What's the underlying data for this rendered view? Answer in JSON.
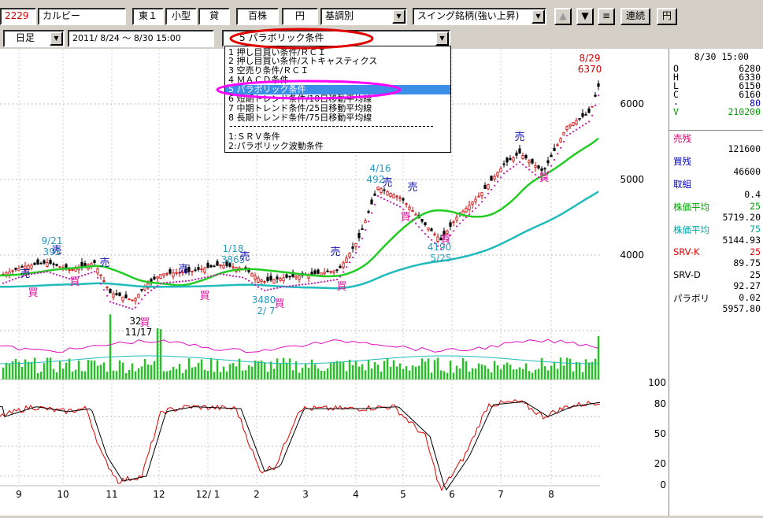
{
  "toolbar": {
    "code": "2229",
    "name": "カルビー",
    "market": "東１",
    "size": "小型",
    "loan": "貸",
    "unit": "百株",
    "currency_btn": "円",
    "condition_select": "基調別",
    "screen_select": "スイング銘柄(強い上昇)",
    "up_btn": "▲",
    "down_btn": "▼",
    "menu_btn": "≡",
    "continuous_btn": "連続",
    "yen_btn": "円"
  },
  "toolbar2": {
    "period": "日足",
    "date_range": "2011/ 8/24 〜  8/30 15:00",
    "indicator_select": "5 パラボリック条件"
  },
  "dropdown": {
    "items": [
      "1 押し目買い条件/ＲＣＩ",
      "2 押し目買い条件/ストキャスティクス",
      "3 空売り条件/ＲＣＩ",
      "4 ＭＡＣＤ条件",
      "5 パラボリック条件",
      "6 短期トレンド条件/10日移動平均線",
      "7 中期トレンド条件/25日移動平均線",
      "8 長期トレンド条件/75日移動平均線",
      "1:ＳＲＶ条件",
      "2:パラボリック波動条件"
    ],
    "selected_index": 4
  },
  "panel": {
    "date": "8/30 15:00",
    "ohlc": [
      {
        "k": "O",
        "v": "6280"
      },
      {
        "k": "H",
        "v": "6330"
      },
      {
        "k": "L",
        "v": "6150"
      },
      {
        "k": "C",
        "v": "6160"
      },
      {
        "k": "-",
        "v": "80"
      },
      {
        "k": "V",
        "v": "210200"
      }
    ],
    "stats": [
      {
        "label": "売残",
        "value": "121600",
        "color": "#d0006e"
      },
      {
        "label": "買残",
        "value": "46600",
        "color": "#0000c0"
      },
      {
        "label": "取組",
        "value": "0.4",
        "color": "#0000c0"
      },
      {
        "label": "株価平均",
        "sub": "25",
        "value": "5719.20",
        "color": "#00a000"
      },
      {
        "label": "株価平均",
        "sub": "75",
        "value": "5144.93",
        "color": "#00a0a0"
      },
      {
        "label": "SRV-K",
        "sub": "25",
        "value": "89.75",
        "color": "#e00000"
      },
      {
        "label": "SRV-D",
        "sub": "25",
        "value": "92.27",
        "color": "#000000"
      },
      {
        "label": "パラボリ",
        "sub": "0.02",
        "value": "5957.80",
        "color": "#000000"
      }
    ]
  },
  "axes": {
    "price_ticks": [
      "6000",
      "5000",
      "4000"
    ],
    "osc_ticks": [
      "100",
      "80",
      "50",
      "20",
      "0"
    ],
    "x_ticks": [
      "9",
      "10",
      "11",
      "12",
      "12/ 1",
      "2",
      "3",
      "4",
      "5",
      "6",
      "7",
      "8"
    ]
  },
  "annotations": {
    "top_date": "8/29",
    "top_price": "6370",
    "a1_date": "9/21",
    "a1_price": "395",
    "a2_date": "1/18",
    "a2_price": "3865",
    "a3_price": "3480",
    "a3_date": "2/ 7",
    "a4_price": "32",
    "a4_date": "11/17",
    "a5_date": "4/16",
    "a5_price": "492",
    "a6_price": "4190",
    "a6_date": "5/25",
    "sell": "売",
    "buy": "買"
  },
  "colors": {
    "highlight_red": "#e00000",
    "highlight_magenta": "#ff00ff",
    "ma25": "#22cc22",
    "ma75": "#22bbbb",
    "parabolic_buy": "#e010c0",
    "selected": "#3c8fe6"
  }
}
